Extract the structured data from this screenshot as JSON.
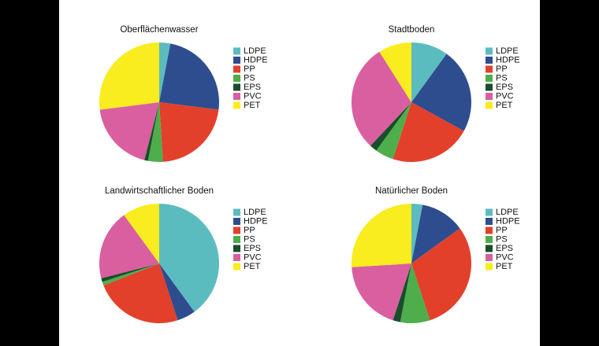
{
  "chart_data": [
    {
      "type": "pie",
      "title": "Oberflächenwasser",
      "categories": [
        "LDPE",
        "HDPE",
        "PP",
        "PS",
        "EPS",
        "PVC",
        "PET"
      ],
      "values": [
        3,
        24,
        22,
        4,
        1,
        19,
        27
      ],
      "colors": [
        "#5bbcc0",
        "#2e4d8f",
        "#e2402b",
        "#4eae4b",
        "#1a4d2a",
        "#d95fa0",
        "#f9ec1f"
      ]
    },
    {
      "type": "pie",
      "title": "Stadtboden",
      "categories": [
        "LDPE",
        "HDPE",
        "PP",
        "PS",
        "EPS",
        "PVC",
        "PET"
      ],
      "values": [
        10,
        23,
        22,
        5,
        2,
        29,
        9
      ],
      "colors": [
        "#5bbcc0",
        "#2e4d8f",
        "#e2402b",
        "#4eae4b",
        "#1a4d2a",
        "#d95fa0",
        "#f9ec1f"
      ]
    },
    {
      "type": "pie",
      "title": "Landwirtschaftlicher Boden",
      "categories": [
        "LDPE",
        "HDPE",
        "PP",
        "PS",
        "EPS",
        "PVC",
        "PET"
      ],
      "values": [
        40,
        5,
        24,
        1,
        1,
        19,
        10
      ],
      "colors": [
        "#5bbcc0",
        "#2e4d8f",
        "#e2402b",
        "#4eae4b",
        "#1a4d2a",
        "#d95fa0",
        "#f9ec1f"
      ]
    },
    {
      "type": "pie",
      "title": "Natürlicher Boden",
      "categories": [
        "LDPE",
        "HDPE",
        "PP",
        "PS",
        "EPS",
        "PVC",
        "PET"
      ],
      "values": [
        3,
        12,
        30,
        8,
        2,
        19,
        26
      ],
      "colors": [
        "#5bbcc0",
        "#2e4d8f",
        "#e2402b",
        "#4eae4b",
        "#1a4d2a",
        "#d95fa0",
        "#f9ec1f"
      ]
    }
  ]
}
